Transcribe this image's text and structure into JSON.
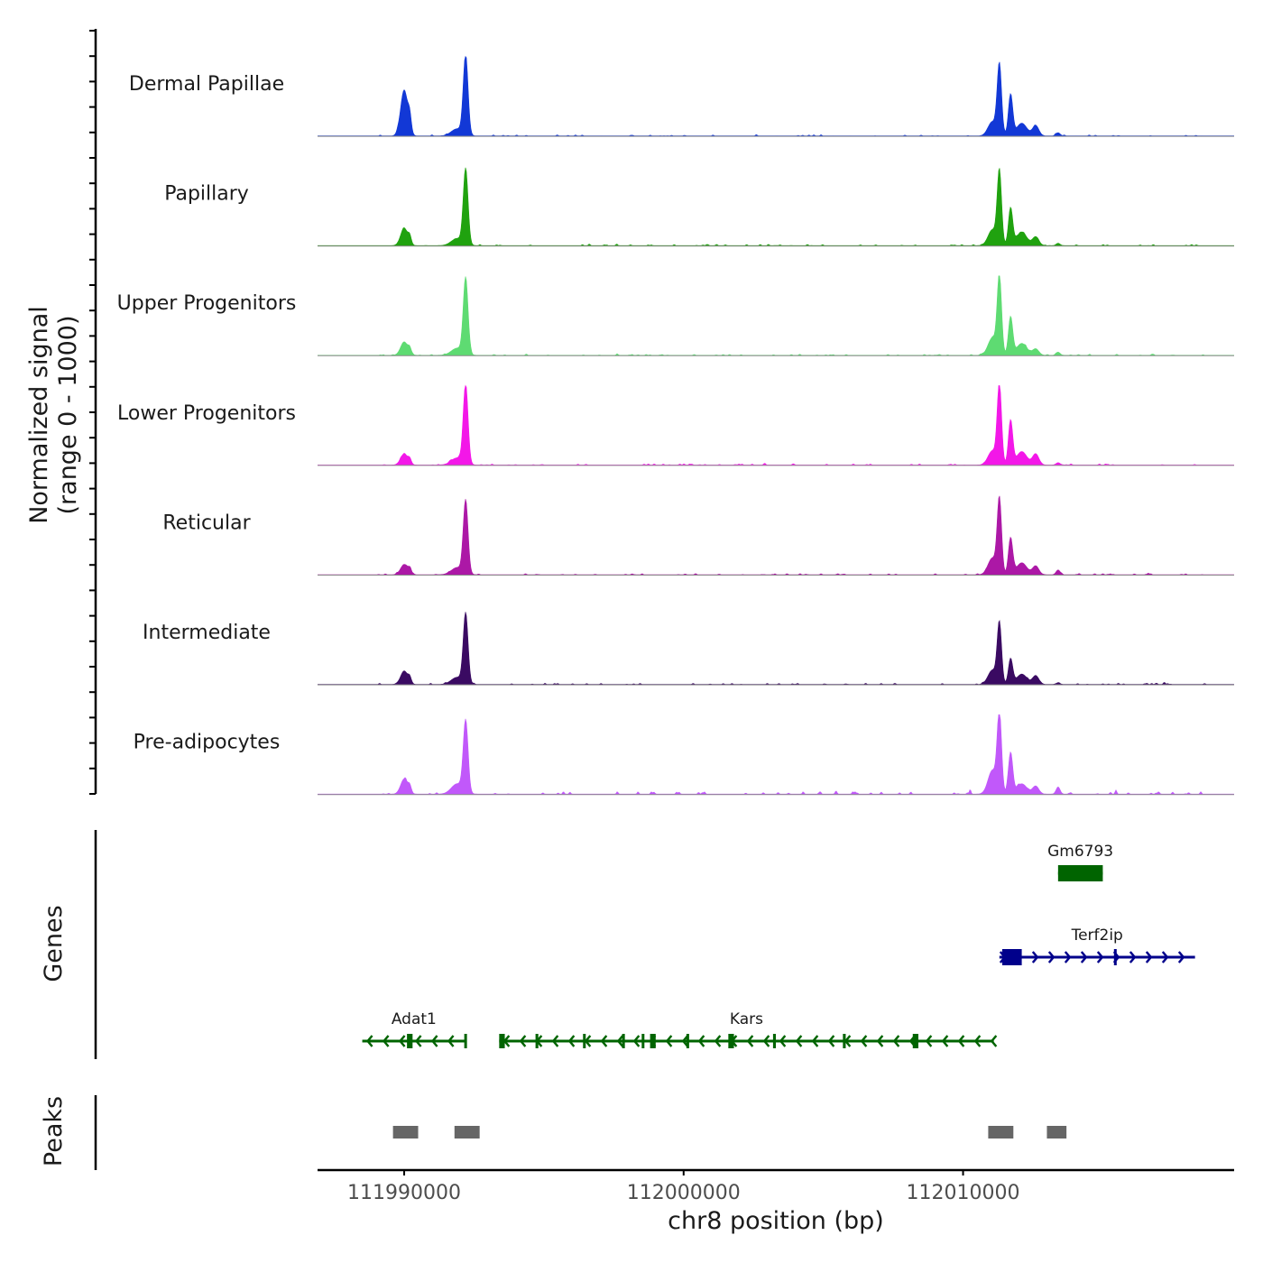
{
  "chart_data": {
    "type": "area",
    "chromosome": "chr8",
    "xlabel": "chr8 position (bp)",
    "xlim": [
      111986900,
      112019700
    ],
    "x_ticks": [
      111990000,
      112000000,
      112010000
    ],
    "ylabel_line1": "Normalized signal",
    "ylabel_line2": "(range 0 - 1000)",
    "ylim": [
      0,
      1000
    ],
    "tracks": [
      {
        "name": "Dermal Papillae",
        "color": "#1238D6"
      },
      {
        "name": "Papillary",
        "color": "#20A20F"
      },
      {
        "name": "Upper Progenitors",
        "color": "#5EDB72"
      },
      {
        "name": "Lower Progenitors",
        "color": "#F317E8"
      },
      {
        "name": "Reticular",
        "color": "#AC18A6"
      },
      {
        "name": "Intermediate",
        "color": "#3A0A62"
      },
      {
        "name": "Pre-adipocytes",
        "color": "#C158FA"
      }
    ],
    "peak_shapes": [
      {
        "center": 111990000,
        "width": 180,
        "heights": [
          580,
          220,
          170,
          140,
          130,
          170,
          190
        ]
      },
      {
        "center": 111990200,
        "width": 80,
        "heights": [
          180,
          90,
          70,
          60,
          60,
          70,
          80
        ]
      },
      {
        "center": 111992200,
        "width": 120,
        "heights": [
          1000,
          950,
          960,
          1000,
          920,
          880,
          900
        ]
      },
      {
        "center": 111991900,
        "width": 300,
        "heights": [
          90,
          90,
          90,
          90,
          90,
          90,
          130
        ]
      },
      {
        "center": 112011300,
        "width": 110,
        "heights": [
          880,
          920,
          980,
          1000,
          940,
          760,
          1000
        ]
      },
      {
        "center": 112011050,
        "width": 220,
        "heights": [
          180,
          200,
          220,
          180,
          210,
          180,
          300
        ]
      },
      {
        "center": 112011700,
        "width": 110,
        "heights": [
          520,
          470,
          480,
          560,
          460,
          320,
          520
        ]
      },
      {
        "center": 112012100,
        "width": 260,
        "heights": [
          160,
          170,
          150,
          170,
          150,
          130,
          130
        ]
      },
      {
        "center": 112012600,
        "width": 160,
        "heights": [
          130,
          110,
          80,
          140,
          110,
          110,
          100
        ]
      },
      {
        "center": 112013400,
        "width": 100,
        "heights": [
          40,
          30,
          40,
          30,
          60,
          20,
          90
        ]
      }
    ],
    "genes": [
      {
        "name": "Gm6793",
        "start": 112013400,
        "end": 112015000,
        "strand": "+",
        "row": 0,
        "color": "#006400",
        "exons": [
          [
            112013400,
            112015000
          ]
        ]
      },
      {
        "name": "Terf2ip",
        "start": 112011300,
        "end": 112018300,
        "strand": "+",
        "row": 1,
        "color": "#00008B",
        "exons": [
          [
            112011400,
            112012100
          ],
          [
            112015400,
            112015450
          ]
        ]
      },
      {
        "name": "Adat1",
        "start": 111988500,
        "end": 111992200,
        "strand": "-",
        "row": 2,
        "color": "#006400",
        "exons": [
          [
            111990100,
            111990300
          ],
          [
            111992150,
            111992200
          ]
        ]
      },
      {
        "name": "Kars",
        "start": 111993400,
        "end": 112011100,
        "strand": "-",
        "row": 2,
        "color": "#006400",
        "exons": [
          [
            111993400,
            111993600
          ],
          [
            111994700,
            111994800
          ],
          [
            111996400,
            111996450
          ],
          [
            111997800,
            111997850
          ],
          [
            111998500,
            111998550
          ],
          [
            111998800,
            111999000
          ],
          [
            112000100,
            112000150
          ],
          [
            112001600,
            112001800
          ],
          [
            112003200,
            112003300
          ],
          [
            112005700,
            112005800
          ],
          [
            112008200,
            112008400
          ]
        ]
      }
    ],
    "peaks": [
      {
        "start": 111989600,
        "end": 111990500
      },
      {
        "start": 111991800,
        "end": 111992700
      },
      {
        "start": 112010900,
        "end": 112011800
      },
      {
        "start": 112013000,
        "end": 112013700
      }
    ],
    "genes_label": "Genes",
    "peaks_label": "Peaks"
  }
}
